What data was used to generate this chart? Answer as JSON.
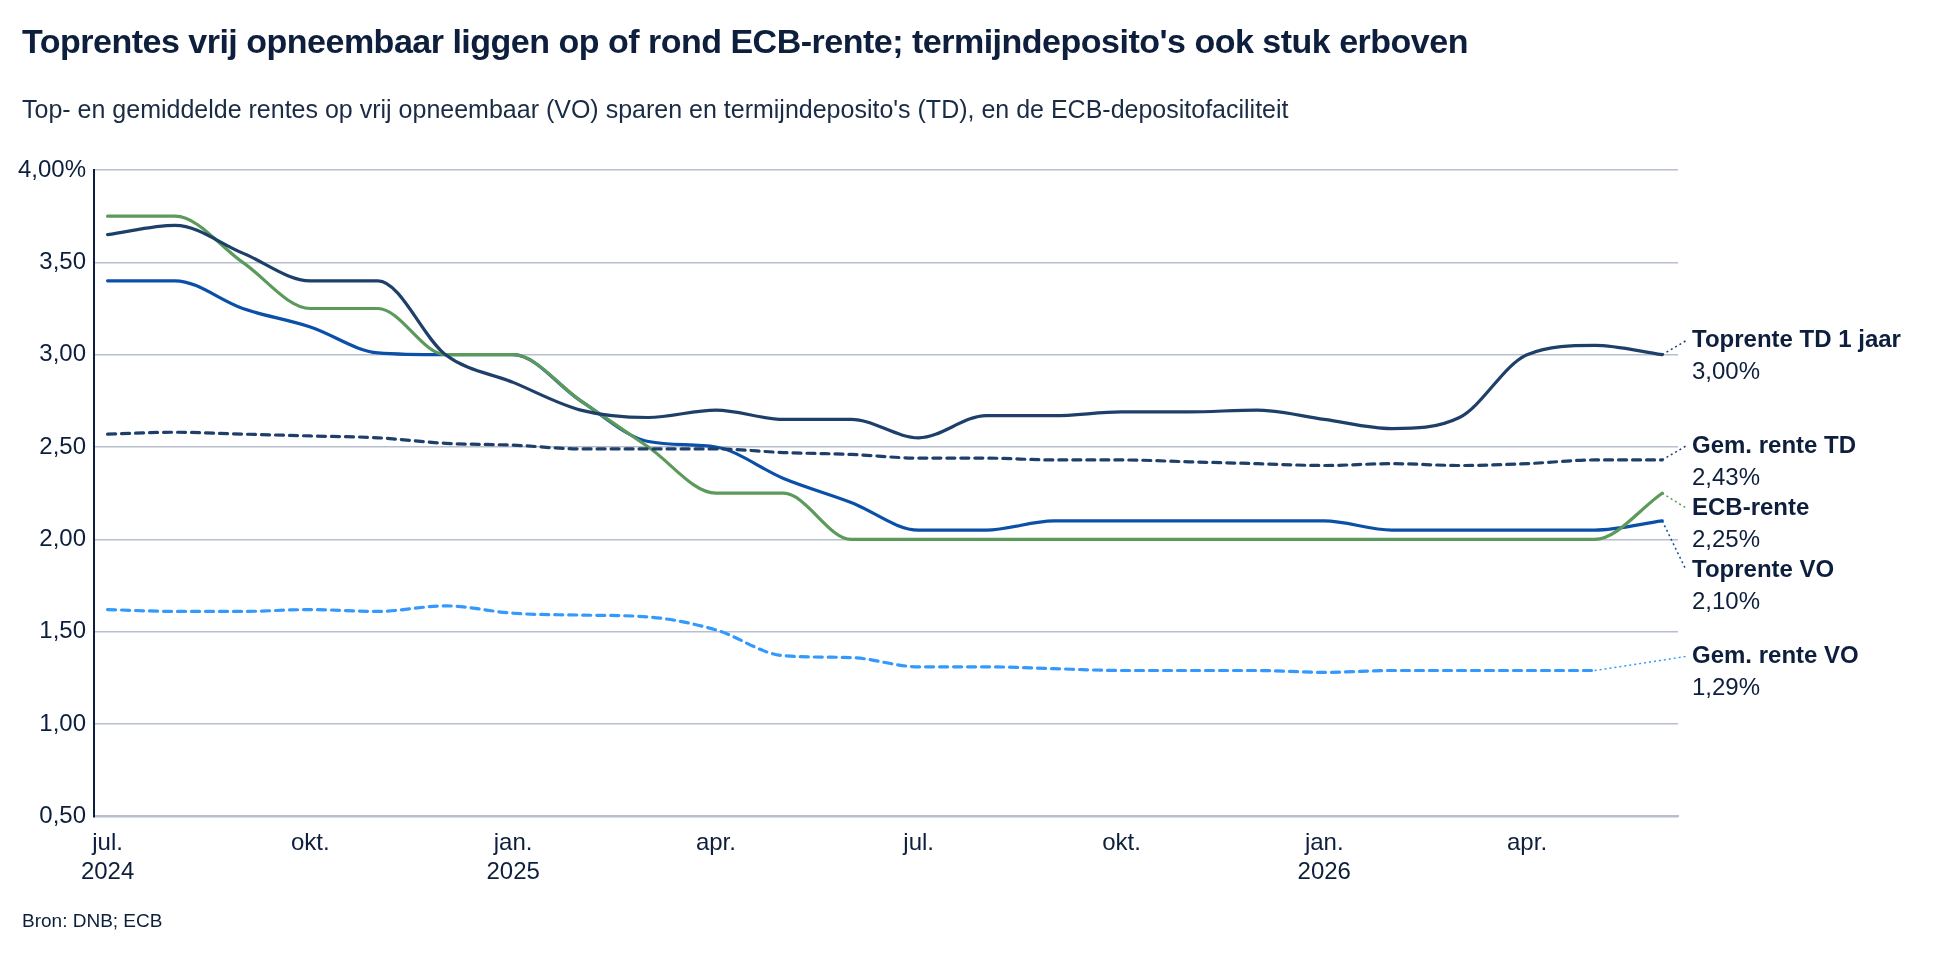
{
  "chart_data": {
    "type": "line",
    "title": "Toprentes vrij opneembaar liggen op of rond ECB-rente; termijndeposito's ook stuk erboven",
    "subtitle": "Top- en gemiddelde rentes op vrij opneembaar (VO) sparen en termijndeposito's (TD), en de ECB-depositofaciliteit",
    "x": [
      "2024-07",
      "2024-08",
      "2024-09",
      "2024-10",
      "2024-11",
      "2024-12",
      "2025-01",
      "2025-02",
      "2025-03",
      "2025-04",
      "2025-05",
      "2025-06",
      "2025-07",
      "2025-08",
      "2025-09",
      "2025-10",
      "2025-11",
      "2025-12",
      "2026-01",
      "2026-02",
      "2026-03",
      "2026-04",
      "2026-05",
      "2026-06"
    ],
    "series": [
      {
        "name": "Toprente TD 1 jaar",
        "color": "#1f3f6b",
        "line_style": "solid",
        "values": [
          3.65,
          3.7,
          3.55,
          3.4,
          3.4,
          3.0,
          2.85,
          2.7,
          2.66,
          2.7,
          2.65,
          2.65,
          2.55,
          2.67,
          2.67,
          2.69,
          2.69,
          2.7,
          2.65,
          2.6,
          2.66,
          3.0,
          3.05,
          3.0
        ],
        "value_labels": [
          null,
          null,
          null,
          null,
          null,
          null,
          null,
          null,
          null,
          null,
          null,
          null,
          null,
          null,
          null,
          null,
          null,
          null,
          null,
          null,
          null,
          null,
          null,
          "3,00%"
        ]
      },
      {
        "name": "Gem. rente TD",
        "color": "#1f3f6b",
        "line_style": "dashed",
        "values": [
          2.57,
          2.58,
          2.57,
          2.56,
          2.55,
          2.52,
          2.51,
          2.49,
          2.49,
          2.49,
          2.47,
          2.46,
          2.44,
          2.44,
          2.43,
          2.43,
          2.42,
          2.41,
          2.4,
          2.41,
          2.4,
          2.41,
          2.43,
          2.43
        ],
        "value_labels": [
          null,
          null,
          null,
          null,
          null,
          null,
          null,
          null,
          null,
          null,
          null,
          null,
          null,
          null,
          null,
          null,
          null,
          null,
          null,
          null,
          null,
          null,
          null,
          "2,43%"
        ]
      },
      {
        "name": "ECB-rente",
        "color": "#5b9a5a",
        "line_style": "solid",
        "values": [
          3.75,
          3.75,
          3.5,
          3.25,
          3.25,
          3.0,
          3.0,
          2.75,
          2.5,
          2.25,
          2.25,
          2.0,
          2.0,
          2.0,
          2.0,
          2.0,
          2.0,
          2.0,
          2.0,
          2.0,
          2.0,
          2.0,
          2.0,
          2.25
        ],
        "value_labels": [
          null,
          null,
          null,
          null,
          null,
          null,
          null,
          null,
          null,
          null,
          null,
          null,
          null,
          null,
          null,
          null,
          null,
          null,
          null,
          null,
          null,
          null,
          null,
          "2,25%"
        ]
      },
      {
        "name": "Toprente VO",
        "color": "#0a4fa8",
        "line_style": "solid",
        "values": [
          3.4,
          3.4,
          3.25,
          3.15,
          3.01,
          3.0,
          3.0,
          2.75,
          2.53,
          2.5,
          2.33,
          2.2,
          2.05,
          2.05,
          2.1,
          2.1,
          2.1,
          2.1,
          2.1,
          2.05,
          2.05,
          2.05,
          2.05,
          2.1
        ],
        "value_labels": [
          null,
          null,
          null,
          null,
          null,
          null,
          null,
          null,
          null,
          null,
          null,
          null,
          null,
          null,
          null,
          null,
          null,
          null,
          null,
          null,
          null,
          null,
          null,
          "2,10%"
        ]
      },
      {
        "name": "Gem. rente VO",
        "color": "#3399ff",
        "line_style": "dashed",
        "values": [
          1.62,
          1.61,
          1.61,
          1.62,
          1.61,
          1.64,
          1.6,
          1.59,
          1.58,
          1.51,
          1.37,
          1.36,
          1.31,
          1.31,
          1.3,
          1.29,
          1.29,
          1.29,
          1.28,
          1.29,
          1.29,
          1.29,
          1.29,
          null
        ],
        "value_labels": [
          null,
          null,
          null,
          null,
          null,
          null,
          null,
          null,
          null,
          null,
          null,
          null,
          null,
          null,
          null,
          null,
          null,
          null,
          null,
          null,
          null,
          null,
          "1,29%",
          null
        ]
      }
    ],
    "xlim": [
      "2024-06-25",
      "2026-06-08"
    ],
    "xticks": [
      {
        "value": "2024-07",
        "label": "jul. 2024"
      },
      {
        "value": "2024-10",
        "label": "okt."
      },
      {
        "value": "2025-01",
        "label": "jan. 2025"
      },
      {
        "value": "2025-04",
        "label": "apr."
      },
      {
        "value": "2025-07",
        "label": "jul."
      },
      {
        "value": "2025-10",
        "label": "okt."
      },
      {
        "value": "2026-01",
        "label": "jan. 2026"
      },
      {
        "value": "2026-04",
        "label": "apr."
      }
    ],
    "ylim": [
      0.5,
      4.0
    ],
    "yticks": [
      {
        "value": 0.5,
        "label": "0,50"
      },
      {
        "value": 1.0,
        "label": "1,00"
      },
      {
        "value": 1.5,
        "label": "1,50"
      },
      {
        "value": 2.0,
        "label": "2,00"
      },
      {
        "value": 2.5,
        "label": "2,50"
      },
      {
        "value": 3.0,
        "label": "3,00"
      },
      {
        "value": 3.5,
        "label": "3,50"
      },
      {
        "value": 4.0,
        "label": "4,00%"
      }
    ],
    "grid": "y",
    "legend": false,
    "marker": "none",
    "annotations": [
      "Bron: DNB; ECB"
    ]
  }
}
